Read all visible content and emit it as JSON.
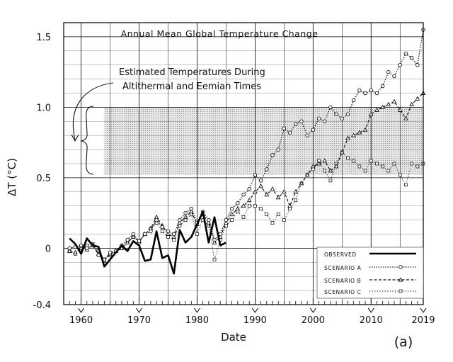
{
  "chart_data": {
    "type": "line",
    "title": "Annual Mean Global Temperature Change",
    "xlabel": "Date",
    "ylabel": "ΔT (°C)",
    "panel_label": "(a)",
    "xlim": [
      1957,
      2019
    ],
    "ylim": [
      -0.4,
      1.6
    ],
    "x_ticks": [
      1960,
      1970,
      1980,
      1990,
      2000,
      2010,
      2019
    ],
    "x_tick_labels": [
      "1960",
      "1970",
      "1980",
      "1990",
      "2000",
      "2010",
      "2019"
    ],
    "y_ticks": [
      -0.4,
      0,
      0.5,
      1.0,
      1.5
    ],
    "y_tick_labels": [
      "-0.4",
      "0",
      "0.5",
      "1.0",
      "1.5"
    ],
    "grid": true,
    "legend_position": "bottom-right",
    "annotation": {
      "lines": [
        "Estimated Temperatures During",
        "Altithermal and Eemian Times"
      ],
      "band_range": [
        0.52,
        1.0
      ],
      "band_x_start": 1964
    },
    "series": [
      {
        "name": "OBSERVED",
        "style": "solid-thick",
        "x": [
          1958,
          1959,
          1960,
          1961,
          1962,
          1963,
          1964,
          1965,
          1966,
          1967,
          1968,
          1969,
          1970,
          1971,
          1972,
          1973,
          1974,
          1975,
          1976,
          1977,
          1978,
          1979,
          1980,
          1981,
          1982,
          1983,
          1984,
          1985
        ],
        "y": [
          0.07,
          0.03,
          -0.04,
          0.07,
          0.02,
          0.01,
          -0.13,
          -0.08,
          -0.03,
          0.02,
          -0.02,
          0.05,
          0.02,
          -0.09,
          -0.08,
          0.12,
          -0.07,
          -0.05,
          -0.18,
          0.13,
          0.04,
          0.08,
          0.17,
          0.26,
          0.04,
          0.22,
          0.02,
          0.04
        ]
      },
      {
        "name": "SCENARIO A",
        "style": "dotted-circle",
        "x": [
          1958,
          1959,
          1960,
          1961,
          1962,
          1963,
          1964,
          1965,
          1966,
          1967,
          1968,
          1969,
          1970,
          1971,
          1972,
          1973,
          1974,
          1975,
          1976,
          1977,
          1978,
          1979,
          1980,
          1981,
          1982,
          1983,
          1984,
          1985,
          1986,
          1987,
          1988,
          1989,
          1990,
          1991,
          1992,
          1993,
          1994,
          1995,
          1996,
          1997,
          1998,
          1999,
          2000,
          2001,
          2002,
          2003,
          2004,
          2005,
          2006,
          2007,
          2008,
          2009,
          2010,
          2011,
          2012,
          2013,
          2014,
          2015,
          2016,
          2017,
          2018,
          2019
        ],
        "y": [
          0.0,
          0.01,
          0.02,
          0.0,
          0.02,
          -0.05,
          -0.08,
          -0.03,
          -0.02,
          0.02,
          0.06,
          0.1,
          0.05,
          0.1,
          0.12,
          0.2,
          0.15,
          0.12,
          0.1,
          0.2,
          0.25,
          0.28,
          0.18,
          0.26,
          0.2,
          0.06,
          0.1,
          0.2,
          0.28,
          0.32,
          0.38,
          0.42,
          0.52,
          0.48,
          0.56,
          0.66,
          0.7,
          0.85,
          0.82,
          0.88,
          0.9,
          0.8,
          0.84,
          0.92,
          0.9,
          1.0,
          0.95,
          0.92,
          0.95,
          1.05,
          1.12,
          1.1,
          1.12,
          1.1,
          1.15,
          1.25,
          1.22,
          1.3,
          1.38,
          1.35,
          1.3,
          1.55
        ]
      },
      {
        "name": "SCENARIO B",
        "style": "dashed-triangle",
        "x": [
          1958,
          1959,
          1960,
          1961,
          1962,
          1963,
          1964,
          1965,
          1966,
          1967,
          1968,
          1969,
          1970,
          1971,
          1972,
          1973,
          1974,
          1975,
          1976,
          1977,
          1978,
          1979,
          1980,
          1981,
          1982,
          1983,
          1984,
          1985,
          1986,
          1987,
          1988,
          1989,
          1990,
          1991,
          1992,
          1993,
          1994,
          1995,
          1996,
          1997,
          1998,
          1999,
          2000,
          2001,
          2002,
          2003,
          2004,
          2005,
          2006,
          2007,
          2008,
          2009,
          2010,
          2011,
          2012,
          2013,
          2014,
          2015,
          2016,
          2017,
          2018,
          2019
        ],
        "y": [
          -0.02,
          -0.03,
          0.0,
          -0.01,
          0.02,
          -0.04,
          -0.09,
          -0.04,
          -0.02,
          0.0,
          0.04,
          0.08,
          0.05,
          0.1,
          0.14,
          0.22,
          0.16,
          0.1,
          0.08,
          0.18,
          0.22,
          0.26,
          0.17,
          0.24,
          0.18,
          0.04,
          0.08,
          0.18,
          0.24,
          0.28,
          0.3,
          0.34,
          0.4,
          0.44,
          0.38,
          0.42,
          0.36,
          0.4,
          0.3,
          0.4,
          0.46,
          0.52,
          0.58,
          0.6,
          0.62,
          0.55,
          0.58,
          0.68,
          0.78,
          0.8,
          0.82,
          0.84,
          0.95,
          0.98,
          1.0,
          1.02,
          1.04,
          0.98,
          0.92,
          1.02,
          1.06,
          1.1
        ]
      },
      {
        "name": "SCENARIO C",
        "style": "dotted-square",
        "x": [
          1958,
          1959,
          1960,
          1961,
          1962,
          1963,
          1964,
          1965,
          1966,
          1967,
          1968,
          1969,
          1970,
          1971,
          1972,
          1973,
          1974,
          1975,
          1976,
          1977,
          1978,
          1979,
          1980,
          1981,
          1982,
          1983,
          1984,
          1985,
          1986,
          1987,
          1988,
          1989,
          1990,
          1991,
          1992,
          1993,
          1994,
          1995,
          1996,
          1997,
          1998,
          1999,
          2000,
          2001,
          2002,
          2003,
          2004,
          2005,
          2006,
          2007,
          2008,
          2009,
          2010,
          2011,
          2012,
          2013,
          2014,
          2015,
          2016,
          2017,
          2018,
          2019
        ],
        "y": [
          -0.02,
          -0.04,
          0.0,
          0.02,
          0.03,
          -0.02,
          -0.08,
          -0.05,
          -0.02,
          0.0,
          0.04,
          0.08,
          0.04,
          0.1,
          0.14,
          0.18,
          0.12,
          0.08,
          0.06,
          0.16,
          0.2,
          0.24,
          0.1,
          0.2,
          0.16,
          -0.08,
          0.06,
          0.16,
          0.2,
          0.26,
          0.22,
          0.3,
          0.3,
          0.28,
          0.24,
          0.18,
          0.24,
          0.2,
          0.28,
          0.34,
          0.46,
          0.52,
          0.56,
          0.62,
          0.55,
          0.48,
          0.6,
          0.68,
          0.64,
          0.62,
          0.58,
          0.55,
          0.62,
          0.6,
          0.58,
          0.55,
          0.6,
          0.52,
          0.45,
          0.6,
          0.58,
          0.6
        ]
      }
    ]
  }
}
